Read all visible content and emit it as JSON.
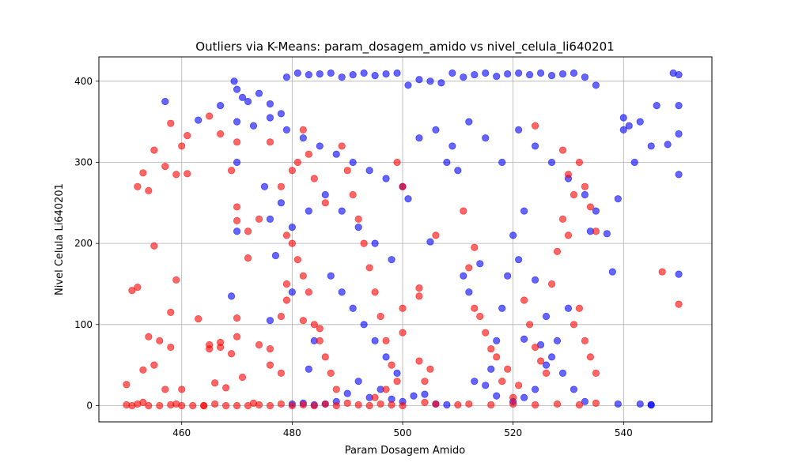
{
  "chart_data": {
    "type": "scatter",
    "title": "Outliers via K-Means: param_dosagem_amido vs nivel_celula_li640201",
    "xlabel": "Param Dosagem Amido",
    "ylabel": "Nivel Celula Li640201",
    "xlim": [
      445,
      556
    ],
    "ylim": [
      -20,
      430
    ],
    "xticks": [
      460,
      480,
      500,
      520,
      540
    ],
    "yticks": [
      0,
      100,
      200,
      300,
      400
    ],
    "grid": true,
    "colors": {
      "normal": "#0000ff",
      "outlier": "#ff0000"
    },
    "series": [
      {
        "color": "#0000ff",
        "points": [
          [
            469.5,
            400
          ],
          [
            470,
            390
          ],
          [
            471,
            380
          ],
          [
            472,
            375
          ],
          [
            474,
            385
          ],
          [
            476,
            372
          ],
          [
            478,
            360
          ],
          [
            479,
            405
          ],
          [
            481,
            410
          ],
          [
            483,
            408
          ],
          [
            485,
            409
          ],
          [
            487,
            410
          ],
          [
            489,
            405
          ],
          [
            491,
            408
          ],
          [
            493,
            410
          ],
          [
            495,
            407
          ],
          [
            497,
            409
          ],
          [
            499,
            410
          ],
          [
            501,
            395
          ],
          [
            503,
            402
          ],
          [
            505,
            400
          ],
          [
            507,
            398
          ],
          [
            509,
            410
          ],
          [
            511,
            405
          ],
          [
            513,
            408
          ],
          [
            515,
            410
          ],
          [
            517,
            406
          ],
          [
            519,
            409
          ],
          [
            521,
            410
          ],
          [
            523,
            408
          ],
          [
            525,
            410
          ],
          [
            527,
            407
          ],
          [
            529,
            409
          ],
          [
            531,
            410
          ],
          [
            533,
            405
          ],
          [
            535,
            395
          ],
          [
            470,
            350
          ],
          [
            473,
            345
          ],
          [
            476,
            355
          ],
          [
            479,
            340
          ],
          [
            482,
            330
          ],
          [
            485,
            320
          ],
          [
            488,
            310
          ],
          [
            491,
            300
          ],
          [
            494,
            290
          ],
          [
            497,
            280
          ],
          [
            500,
            270
          ],
          [
            503,
            330
          ],
          [
            506,
            340
          ],
          [
            509,
            320
          ],
          [
            512,
            350
          ],
          [
            515,
            330
          ],
          [
            518,
            300
          ],
          [
            521,
            340
          ],
          [
            524,
            320
          ],
          [
            527,
            300
          ],
          [
            530,
            280
          ],
          [
            533,
            260
          ],
          [
            535,
            240
          ],
          [
            534,
            215
          ],
          [
            478,
            250
          ],
          [
            476,
            230
          ],
          [
            475,
            270
          ],
          [
            480,
            220
          ],
          [
            483,
            240
          ],
          [
            486,
            260
          ],
          [
            489,
            240
          ],
          [
            492,
            220
          ],
          [
            495,
            200
          ],
          [
            498,
            180
          ],
          [
            487,
            160
          ],
          [
            489,
            140
          ],
          [
            491,
            120
          ],
          [
            493,
            100
          ],
          [
            495,
            80
          ],
          [
            497,
            60
          ],
          [
            499,
            40
          ],
          [
            492,
            30
          ],
          [
            490,
            15
          ],
          [
            488,
            5
          ],
          [
            486,
            2
          ],
          [
            484,
            1
          ],
          [
            482,
            3
          ],
          [
            480,
            2
          ],
          [
            494,
            10
          ],
          [
            496,
            20
          ],
          [
            498,
            8
          ],
          [
            500,
            5
          ],
          [
            502,
            12
          ],
          [
            504,
            14
          ],
          [
            506,
            2
          ],
          [
            508,
            1
          ],
          [
            513,
            30
          ],
          [
            515,
            25
          ],
          [
            517,
            12
          ],
          [
            520,
            5
          ],
          [
            522,
            10
          ],
          [
            524,
            20
          ],
          [
            526,
            50
          ],
          [
            528,
            80
          ],
          [
            527,
            60
          ],
          [
            529,
            40
          ],
          [
            531,
            20
          ],
          [
            533,
            5
          ],
          [
            516,
            45
          ],
          [
            517,
            80
          ],
          [
            518,
            120
          ],
          [
            519,
            160
          ],
          [
            520,
            210
          ],
          [
            521,
            180
          ],
          [
            522,
            82
          ],
          [
            525,
            75
          ],
          [
            526,
            110
          ],
          [
            530,
            120
          ],
          [
            537,
            212
          ],
          [
            538,
            165
          ],
          [
            539,
            255
          ],
          [
            540,
            340
          ],
          [
            540,
            355
          ],
          [
            541,
            345
          ],
          [
            542,
            300
          ],
          [
            543,
            350
          ],
          [
            545,
            320
          ],
          [
            546,
            370
          ],
          [
            548,
            322
          ],
          [
            549,
            410
          ],
          [
            550,
            408
          ],
          [
            550,
            370
          ],
          [
            550,
            335
          ],
          [
            550,
            285
          ],
          [
            550,
            162
          ],
          [
            539,
            2
          ],
          [
            543,
            2
          ],
          [
            545,
            1
          ],
          [
            469,
            135
          ],
          [
            470,
            215
          ],
          [
            470,
            300
          ],
          [
            457,
            375
          ],
          [
            463,
            352
          ],
          [
            467,
            370
          ],
          [
            476,
            105
          ],
          [
            483,
            45
          ],
          [
            477,
            185
          ],
          [
            480,
            140
          ],
          [
            484,
            80
          ],
          [
            501,
            255
          ],
          [
            505,
            202
          ],
          [
            511,
            160
          ],
          [
            512,
            140
          ],
          [
            514,
            175
          ],
          [
            524,
            155
          ],
          [
            522,
            240
          ],
          [
            510,
            290
          ],
          [
            508,
            300
          ],
          [
            545,
            1
          ]
        ]
      },
      {
        "color": "#ff0000",
        "points": [
          [
            450,
            26
          ],
          [
            450,
            1
          ],
          [
            451,
            0
          ],
          [
            452,
            2
          ],
          [
            453,
            4
          ],
          [
            454,
            0
          ],
          [
            456,
            0
          ],
          [
            458,
            1
          ],
          [
            460,
            0
          ],
          [
            462,
            0
          ],
          [
            464,
            0
          ],
          [
            466,
            2
          ],
          [
            468,
            0
          ],
          [
            470,
            0
          ],
          [
            472,
            0
          ],
          [
            474,
            1
          ],
          [
            476,
            0
          ],
          [
            478,
            2
          ],
          [
            480,
            0
          ],
          [
            482,
            1
          ],
          [
            484,
            0
          ],
          [
            486,
            2
          ],
          [
            488,
            0
          ],
          [
            490,
            3
          ],
          [
            492,
            1
          ],
          [
            494,
            0
          ],
          [
            496,
            2
          ],
          [
            498,
            1
          ],
          [
            500,
            0
          ],
          [
            504,
            4
          ],
          [
            506,
            2
          ],
          [
            510,
            1
          ],
          [
            512,
            2
          ],
          [
            516,
            1
          ],
          [
            520,
            2
          ],
          [
            524,
            1
          ],
          [
            528,
            2
          ],
          [
            532,
            1
          ],
          [
            535,
            3
          ],
          [
            451,
            142
          ],
          [
            452,
            146
          ],
          [
            453,
            44
          ],
          [
            454,
            85
          ],
          [
            455,
            50
          ],
          [
            455,
            197
          ],
          [
            456,
            80
          ],
          [
            457,
            20
          ],
          [
            458,
            72
          ],
          [
            459,
            2
          ],
          [
            460,
            20
          ],
          [
            452,
            270
          ],
          [
            453,
            287
          ],
          [
            454,
            265
          ],
          [
            455,
            315
          ],
          [
            457,
            295
          ],
          [
            458,
            348
          ],
          [
            459,
            285
          ],
          [
            460,
            320
          ],
          [
            461,
            333
          ],
          [
            461,
            286
          ],
          [
            465,
            357
          ],
          [
            467,
            335
          ],
          [
            469,
            290
          ],
          [
            470,
            325
          ],
          [
            470,
            245
          ],
          [
            470,
            228
          ],
          [
            470,
            108
          ],
          [
            470,
            85
          ],
          [
            469,
            64
          ],
          [
            467,
            78
          ],
          [
            465,
            70
          ],
          [
            463,
            107
          ],
          [
            459,
            155
          ],
          [
            458,
            115
          ],
          [
            472,
            182
          ],
          [
            474,
            75
          ],
          [
            476,
            70
          ],
          [
            478,
            40
          ],
          [
            479,
            130
          ],
          [
            479,
            150
          ],
          [
            480,
            290
          ],
          [
            481,
            300
          ],
          [
            482,
            340
          ],
          [
            483,
            310
          ],
          [
            484,
            280
          ],
          [
            486,
            250
          ],
          [
            480,
            200
          ],
          [
            481,
            180
          ],
          [
            482,
            160
          ],
          [
            483,
            140
          ],
          [
            484,
            100
          ],
          [
            485,
            80
          ],
          [
            486,
            60
          ],
          [
            487,
            40
          ],
          [
            488,
            20
          ],
          [
            489,
            320
          ],
          [
            490,
            290
          ],
          [
            491,
            260
          ],
          [
            492,
            230
          ],
          [
            493,
            200
          ],
          [
            494,
            170
          ],
          [
            495,
            140
          ],
          [
            496,
            110
          ],
          [
            497,
            80
          ],
          [
            498,
            50
          ],
          [
            499,
            300
          ],
          [
            500,
            270
          ],
          [
            500,
            120
          ],
          [
            500,
            90
          ],
          [
            499,
            30
          ],
          [
            497,
            20
          ],
          [
            495,
            10
          ],
          [
            503,
            55
          ],
          [
            504,
            30
          ],
          [
            505,
            45
          ],
          [
            503,
            145
          ],
          [
            503,
            135
          ],
          [
            506,
            210
          ],
          [
            511,
            240
          ],
          [
            512,
            170
          ],
          [
            513,
            195
          ],
          [
            513,
            120
          ],
          [
            514,
            110
          ],
          [
            515,
            90
          ],
          [
            516,
            70
          ],
          [
            517,
            60
          ],
          [
            518,
            30
          ],
          [
            519,
            45
          ],
          [
            520,
            10
          ],
          [
            521,
            25
          ],
          [
            522,
            130
          ],
          [
            523,
            100
          ],
          [
            524,
            72
          ],
          [
            525,
            55
          ],
          [
            526,
            40
          ],
          [
            527,
            150
          ],
          [
            528,
            190
          ],
          [
            529,
            230
          ],
          [
            530,
            210
          ],
          [
            531,
            260
          ],
          [
            531,
            100
          ],
          [
            532,
            120
          ],
          [
            533,
            80
          ],
          [
            534,
            60
          ],
          [
            535,
            40
          ],
          [
            524,
            345
          ],
          [
            529,
            315
          ],
          [
            530,
            285
          ],
          [
            532,
            300
          ],
          [
            533,
            270
          ],
          [
            534,
            245
          ],
          [
            535,
            215
          ],
          [
            547,
            165
          ],
          [
            550,
            125
          ],
          [
            476,
            325
          ],
          [
            478,
            270
          ],
          [
            474,
            230
          ],
          [
            472,
            215
          ],
          [
            479,
            210
          ],
          [
            478,
            110
          ],
          [
            482,
            105
          ],
          [
            485,
            95
          ],
          [
            476,
            50
          ],
          [
            473,
            3
          ],
          [
            468,
            22
          ],
          [
            466,
            28
          ],
          [
            471,
            35
          ],
          [
            464,
            0
          ],
          [
            465,
            75
          ],
          [
            467,
            72
          ]
        ]
      }
    ]
  }
}
